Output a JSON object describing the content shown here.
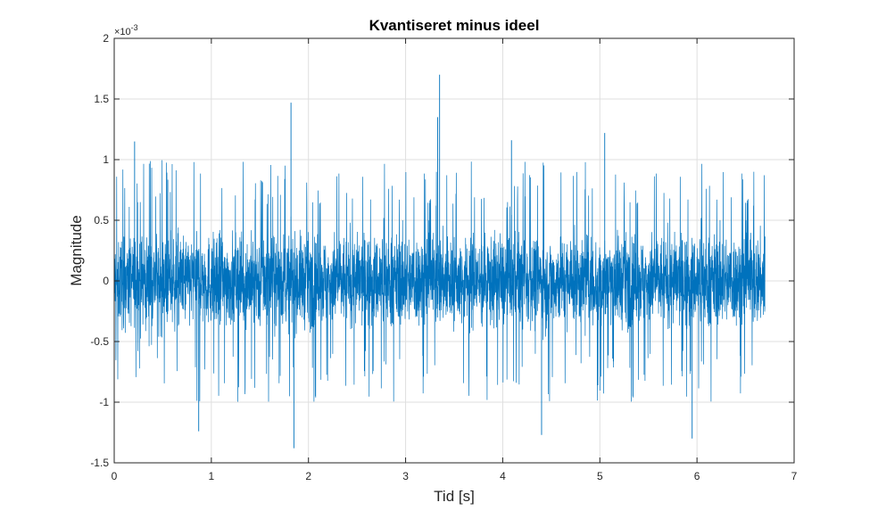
{
  "chart_data": {
    "type": "line",
    "title": "Kvantiseret minus ideel",
    "xlabel": "Tid [s]",
    "ylabel": "Magnitude",
    "y_exponent_label": "×10",
    "y_exponent_power": "-3",
    "xlim": [
      0,
      7
    ],
    "ylim": [
      -1.5,
      2
    ],
    "xticks": [
      0,
      1,
      2,
      3,
      4,
      5,
      6,
      7
    ],
    "xtick_labels": [
      "0",
      "1",
      "2",
      "3",
      "4",
      "5",
      "6",
      "7"
    ],
    "yticks": [
      -1.5,
      -1,
      -0.5,
      0,
      0.5,
      1,
      1.5,
      2
    ],
    "ytick_labels": [
      "-1.5",
      "-1",
      "-0.5",
      "0",
      "0.5",
      "1",
      "1.5",
      "2"
    ],
    "grid": true,
    "series": [
      {
        "color": "#0072BD",
        "x_start": 0,
        "x_end": 6.7,
        "envelope": {
          "dense_band": [
            -0.6,
            0.6
          ],
          "typical_peak_range": [
            -1.0,
            1.0
          ],
          "notable_peaks": [
            {
              "x": 1.82,
              "y": 1.47
            },
            {
              "x": 3.35,
              "y": 1.7
            },
            {
              "x": 3.33,
              "y": 1.35
            },
            {
              "x": 1.85,
              "y": -1.38
            },
            {
              "x": 0.87,
              "y": -1.24
            },
            {
              "x": 4.4,
              "y": -1.27
            },
            {
              "x": 5.95,
              "y": -1.3
            },
            {
              "x": 4.09,
              "y": 1.16
            },
            {
              "x": 5.05,
              "y": 1.22
            },
            {
              "x": 0.21,
              "y": 1.15
            }
          ]
        }
      }
    ]
  }
}
